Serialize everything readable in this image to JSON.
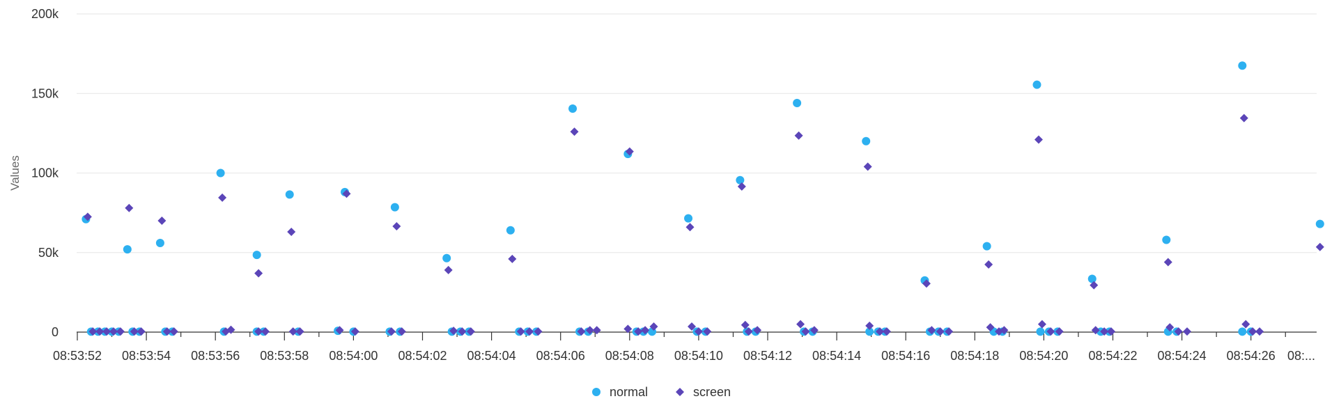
{
  "chart_data": {
    "type": "scatter",
    "title": "",
    "xlabel": "",
    "ylabel": "Values",
    "grid": true,
    "legend_position": "bottom-center",
    "x_type": "time",
    "x_range": [
      "08:53:52",
      "08:54:28"
    ],
    "x_ticks": [
      "08:53:52",
      "08:53:54",
      "08:53:56",
      "08:53:58",
      "08:54:00",
      "08:54:02",
      "08:54:04",
      "08:54:06",
      "08:54:08",
      "08:54:10",
      "08:54:12",
      "08:54:14",
      "08:54:16",
      "08:54:18",
      "08:54:20",
      "08:54:22",
      "08:54:24",
      "08:54:26",
      "08:..."
    ],
    "ylim": [
      0,
      200000
    ],
    "y_ticks": [
      0,
      50000,
      100000,
      150000,
      200000
    ],
    "y_tick_labels": [
      "0",
      "50k",
      "100k",
      "150k",
      "200k"
    ],
    "series": [
      {
        "name": "normal",
        "color": "#2db0f0",
        "marker": "circle",
        "points": [
          {
            "x": "08:53:52.25",
            "y": 71000
          },
          {
            "x": "08:53:52.40",
            "y": 300
          },
          {
            "x": "08:53:52.60",
            "y": 300
          },
          {
            "x": "08:53:52.80",
            "y": 300
          },
          {
            "x": "08:53:53.00",
            "y": 300
          },
          {
            "x": "08:53:53.20",
            "y": 300
          },
          {
            "x": "08:53:53.45",
            "y": 52000
          },
          {
            "x": "08:53:53.60",
            "y": 300
          },
          {
            "x": "08:53:53.80",
            "y": 300
          },
          {
            "x": "08:53:54.40",
            "y": 56000
          },
          {
            "x": "08:53:54.55",
            "y": 300
          },
          {
            "x": "08:53:54.75",
            "y": 300
          },
          {
            "x": "08:53:56.15",
            "y": 100000
          },
          {
            "x": "08:53:56.25",
            "y": 300
          },
          {
            "x": "08:53:57.20",
            "y": 48500
          },
          {
            "x": "08:53:57.20",
            "y": 300
          },
          {
            "x": "08:53:57.40",
            "y": 300
          },
          {
            "x": "08:53:58.15",
            "y": 86500
          },
          {
            "x": "08:53:58.40",
            "y": 300
          },
          {
            "x": "08:53:59.75",
            "y": 88000
          },
          {
            "x": "08:53:59.55",
            "y": 800
          },
          {
            "x": "08:54:00.00",
            "y": 300
          },
          {
            "x": "08:54:01.20",
            "y": 78500
          },
          {
            "x": "08:54:01.05",
            "y": 300
          },
          {
            "x": "08:54:01.35",
            "y": 300
          },
          {
            "x": "08:54:02.70",
            "y": 46500
          },
          {
            "x": "08:54:02.85",
            "y": 300
          },
          {
            "x": "08:54:03.10",
            "y": 300
          },
          {
            "x": "08:54:03.35",
            "y": 300
          },
          {
            "x": "08:54:04.55",
            "y": 64000
          },
          {
            "x": "08:54:04.80",
            "y": 300
          },
          {
            "x": "08:54:05.05",
            "y": 300
          },
          {
            "x": "08:54:05.30",
            "y": 300
          },
          {
            "x": "08:54:06.35",
            "y": 140500
          },
          {
            "x": "08:54:06.55",
            "y": 300
          },
          {
            "x": "08:54:06.80",
            "y": 300
          },
          {
            "x": "08:54:07.95",
            "y": 112000
          },
          {
            "x": "08:54:08.20",
            "y": 300
          },
          {
            "x": "08:54:08.40",
            "y": 300
          },
          {
            "x": "08:54:08.65",
            "y": 300
          },
          {
            "x": "08:54:09.70",
            "y": 71500
          },
          {
            "x": "08:54:09.95",
            "y": 300
          },
          {
            "x": "08:54:10.20",
            "y": 300
          },
          {
            "x": "08:54:11.20",
            "y": 95500
          },
          {
            "x": "08:54:11.40",
            "y": 300
          },
          {
            "x": "08:54:11.65",
            "y": 300
          },
          {
            "x": "08:54:12.85",
            "y": 144000
          },
          {
            "x": "08:54:13.05",
            "y": 300
          },
          {
            "x": "08:54:13.30",
            "y": 300
          },
          {
            "x": "08:54:14.85",
            "y": 120000
          },
          {
            "x": "08:54:14.95",
            "y": 300
          },
          {
            "x": "08:54:15.20",
            "y": 300
          },
          {
            "x": "08:54:15.40",
            "y": 300
          },
          {
            "x": "08:54:16.55",
            "y": 32500
          },
          {
            "x": "08:54:16.70",
            "y": 300
          },
          {
            "x": "08:54:16.95",
            "y": 300
          },
          {
            "x": "08:54:17.20",
            "y": 300
          },
          {
            "x": "08:54:18.35",
            "y": 54000
          },
          {
            "x": "08:54:18.55",
            "y": 300
          },
          {
            "x": "08:54:18.80",
            "y": 300
          },
          {
            "x": "08:54:19.80",
            "y": 155500
          },
          {
            "x": "08:54:19.90",
            "y": 300
          },
          {
            "x": "08:54:20.15",
            "y": 300
          },
          {
            "x": "08:54:20.40",
            "y": 300
          },
          {
            "x": "08:54:21.40",
            "y": 33500
          },
          {
            "x": "08:54:21.65",
            "y": 300
          },
          {
            "x": "08:54:21.90",
            "y": 300
          },
          {
            "x": "08:54:23.55",
            "y": 58000
          },
          {
            "x": "08:54:23.60",
            "y": 300
          },
          {
            "x": "08:54:23.85",
            "y": 300
          },
          {
            "x": "08:54:25.75",
            "y": 167500
          },
          {
            "x": "08:54:25.75",
            "y": 300
          },
          {
            "x": "08:54:26.00",
            "y": 300
          },
          {
            "x": "08:54:28.00",
            "y": 68000
          }
        ]
      },
      {
        "name": "screen",
        "color": "#5b45b8",
        "marker": "diamond",
        "points": [
          {
            "x": "08:53:52.30",
            "y": 72500
          },
          {
            "x": "08:53:52.45",
            "y": 400
          },
          {
            "x": "08:53:52.65",
            "y": 400
          },
          {
            "x": "08:53:52.85",
            "y": 400
          },
          {
            "x": "08:53:53.05",
            "y": 400
          },
          {
            "x": "08:53:53.25",
            "y": 400
          },
          {
            "x": "08:53:53.50",
            "y": 78000
          },
          {
            "x": "08:53:53.65",
            "y": 400
          },
          {
            "x": "08:53:53.85",
            "y": 400
          },
          {
            "x": "08:53:54.45",
            "y": 70000
          },
          {
            "x": "08:53:54.60",
            "y": 400
          },
          {
            "x": "08:53:54.80",
            "y": 400
          },
          {
            "x": "08:53:56.20",
            "y": 84500
          },
          {
            "x": "08:53:56.30",
            "y": 400
          },
          {
            "x": "08:53:56.45",
            "y": 1500
          },
          {
            "x": "08:53:57.25",
            "y": 37000
          },
          {
            "x": "08:53:57.25",
            "y": 400
          },
          {
            "x": "08:53:57.45",
            "y": 400
          },
          {
            "x": "08:53:58.20",
            "y": 63000
          },
          {
            "x": "08:53:58.25",
            "y": 400
          },
          {
            "x": "08:53:58.45",
            "y": 400
          },
          {
            "x": "08:53:59.80",
            "y": 87000
          },
          {
            "x": "08:53:59.60",
            "y": 1200
          },
          {
            "x": "08:54:00.05",
            "y": 400
          },
          {
            "x": "08:54:01.25",
            "y": 66500
          },
          {
            "x": "08:54:01.10",
            "y": 400
          },
          {
            "x": "08:54:01.40",
            "y": 400
          },
          {
            "x": "08:54:02.75",
            "y": 39000
          },
          {
            "x": "08:54:02.90",
            "y": 800
          },
          {
            "x": "08:54:03.15",
            "y": 400
          },
          {
            "x": "08:54:03.40",
            "y": 400
          },
          {
            "x": "08:54:04.60",
            "y": 46000
          },
          {
            "x": "08:54:04.85",
            "y": 400
          },
          {
            "x": "08:54:05.10",
            "y": 400
          },
          {
            "x": "08:54:05.35",
            "y": 400
          },
          {
            "x": "08:54:06.40",
            "y": 126000
          },
          {
            "x": "08:54:06.60",
            "y": 400
          },
          {
            "x": "08:54:06.85",
            "y": 1200
          },
          {
            "x": "08:54:07.05",
            "y": 1200
          },
          {
            "x": "08:54:08.00",
            "y": 113500
          },
          {
            "x": "08:54:07.95",
            "y": 2000
          },
          {
            "x": "08:54:08.25",
            "y": 400
          },
          {
            "x": "08:54:08.45",
            "y": 1200
          },
          {
            "x": "08:54:08.70",
            "y": 3500
          },
          {
            "x": "08:54:09.75",
            "y": 66000
          },
          {
            "x": "08:54:09.80",
            "y": 3500
          },
          {
            "x": "08:54:10.00",
            "y": 400
          },
          {
            "x": "08:54:10.25",
            "y": 400
          },
          {
            "x": "08:54:11.25",
            "y": 91500
          },
          {
            "x": "08:54:11.35",
            "y": 4500
          },
          {
            "x": "08:54:11.45",
            "y": 400
          },
          {
            "x": "08:54:11.70",
            "y": 1200
          },
          {
            "x": "08:54:12.90",
            "y": 123500
          },
          {
            "x": "08:54:12.95",
            "y": 5000
          },
          {
            "x": "08:54:13.10",
            "y": 400
          },
          {
            "x": "08:54:13.35",
            "y": 1200
          },
          {
            "x": "08:54:14.90",
            "y": 104000
          },
          {
            "x": "08:54:14.95",
            "y": 4000
          },
          {
            "x": "08:54:15.25",
            "y": 400
          },
          {
            "x": "08:54:15.45",
            "y": 400
          },
          {
            "x": "08:54:16.60",
            "y": 30500
          },
          {
            "x": "08:54:16.75",
            "y": 1200
          },
          {
            "x": "08:54:17.00",
            "y": 400
          },
          {
            "x": "08:54:17.25",
            "y": 400
          },
          {
            "x": "08:54:18.40",
            "y": 42500
          },
          {
            "x": "08:54:18.45",
            "y": 3000
          },
          {
            "x": "08:54:18.70",
            "y": 400
          },
          {
            "x": "08:54:18.85",
            "y": 1200
          },
          {
            "x": "08:54:19.85",
            "y": 121000
          },
          {
            "x": "08:54:19.95",
            "y": 5000
          },
          {
            "x": "08:54:20.20",
            "y": 400
          },
          {
            "x": "08:54:20.45",
            "y": 400
          },
          {
            "x": "08:54:21.45",
            "y": 29500
          },
          {
            "x": "08:54:21.50",
            "y": 1200
          },
          {
            "x": "08:54:21.75",
            "y": 400
          },
          {
            "x": "08:54:21.95",
            "y": 400
          },
          {
            "x": "08:54:23.60",
            "y": 44000
          },
          {
            "x": "08:54:23.65",
            "y": 3000
          },
          {
            "x": "08:54:23.90",
            "y": 400
          },
          {
            "x": "08:54:24.15",
            "y": 400
          },
          {
            "x": "08:54:25.80",
            "y": 134500
          },
          {
            "x": "08:54:25.85",
            "y": 5000
          },
          {
            "x": "08:54:26.05",
            "y": 400
          },
          {
            "x": "08:54:26.25",
            "y": 400
          },
          {
            "x": "08:54:28.00",
            "y": 53500
          }
        ]
      }
    ]
  }
}
